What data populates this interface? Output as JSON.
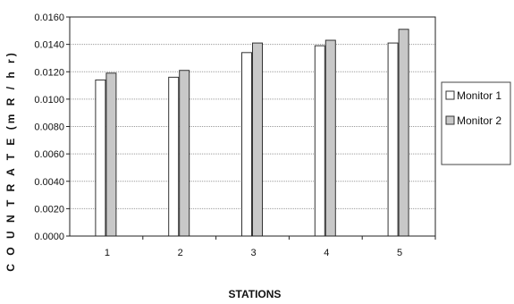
{
  "chart_data": {
    "type": "bar",
    "title": "",
    "xlabel": "STATIONS",
    "ylabel": "C O U N T  R A T E  (m R / h r)",
    "categories": [
      "1",
      "2",
      "3",
      "4",
      "5"
    ],
    "series": [
      {
        "name": "Monitor 1",
        "values": [
          0.0114,
          0.0116,
          0.0134,
          0.0139,
          0.0141
        ],
        "color": "#ffffff"
      },
      {
        "name": "Monitor 2",
        "values": [
          0.0119,
          0.0121,
          0.0141,
          0.0143,
          0.0151
        ],
        "color": "#c8c8c8"
      }
    ],
    "ylim": [
      0,
      0.016
    ],
    "yticks": [
      "0.0000",
      "0.0020",
      "0.0040",
      "0.0060",
      "0.0080",
      "0.0100",
      "0.0120",
      "0.0140",
      "0.0160"
    ],
    "grid": true,
    "legend_position": "right"
  }
}
